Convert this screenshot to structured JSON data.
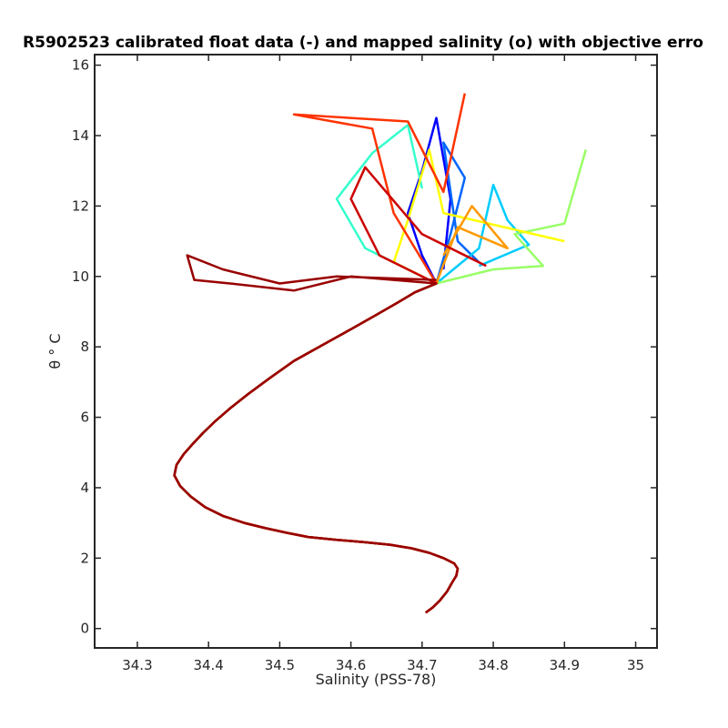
{
  "chart_data": {
    "type": "line",
    "title": "R5902523 calibrated float data (-) and mapped salinity (o) with objective erro",
    "xlabel": "Salinity (PSS-78)",
    "ylabel": "θ ° C",
    "xlim": [
      34.24,
      35.03
    ],
    "ylim": [
      -0.55,
      16.3
    ],
    "xticks": [
      34.3,
      34.4,
      34.5,
      34.6,
      34.7,
      34.8,
      34.9,
      35
    ],
    "xtick_labels": [
      "34.3",
      "34.4",
      "34.5",
      "34.6",
      "34.7",
      "34.8",
      "34.9",
      "35"
    ],
    "yticks": [
      0,
      2,
      4,
      6,
      8,
      10,
      12,
      14,
      16
    ],
    "ytick_labels": [
      "0",
      "2",
      "4",
      "6",
      "8",
      "10",
      "12",
      "14",
      "16"
    ],
    "grid": false,
    "colormap": "jet",
    "colors": [
      "#0000ff",
      "#0066ff",
      "#00ccff",
      "#33ffcc",
      "#99ff66",
      "#ffff00",
      "#ff9900",
      "#ff3300",
      "#cc0000",
      "#990000"
    ],
    "deep_profile": [
      [
        34.705,
        0.45
      ],
      [
        34.715,
        0.6
      ],
      [
        34.725,
        0.8
      ],
      [
        34.735,
        1.05
      ],
      [
        34.742,
        1.3
      ],
      [
        34.748,
        1.5
      ],
      [
        34.75,
        1.7
      ],
      [
        34.745,
        1.85
      ],
      [
        34.73,
        2.0
      ],
      [
        34.71,
        2.15
      ],
      [
        34.685,
        2.28
      ],
      [
        34.655,
        2.38
      ],
      [
        34.62,
        2.45
      ],
      [
        34.58,
        2.52
      ],
      [
        34.54,
        2.6
      ],
      [
        34.51,
        2.72
      ],
      [
        34.48,
        2.85
      ],
      [
        34.45,
        3.0
      ],
      [
        34.42,
        3.2
      ],
      [
        34.395,
        3.45
      ],
      [
        34.375,
        3.75
      ],
      [
        34.36,
        4.05
      ],
      [
        34.352,
        4.35
      ],
      [
        34.355,
        4.65
      ],
      [
        34.365,
        4.95
      ],
      [
        34.378,
        5.25
      ],
      [
        34.392,
        5.55
      ],
      [
        34.41,
        5.9
      ],
      [
        34.43,
        6.25
      ],
      [
        34.455,
        6.65
      ],
      [
        34.485,
        7.1
      ],
      [
        34.52,
        7.6
      ],
      [
        34.56,
        8.05
      ],
      [
        34.6,
        8.5
      ],
      [
        34.635,
        8.9
      ],
      [
        34.665,
        9.25
      ],
      [
        34.69,
        9.55
      ],
      [
        34.72,
        9.8
      ]
    ],
    "series": [
      {
        "color_index": 0,
        "upper": [
          [
            34.72,
            9.8
          ],
          [
            34.7,
            10.6
          ],
          [
            34.68,
            11.8
          ],
          [
            34.7,
            13.0
          ],
          [
            34.72,
            14.5
          ],
          [
            34.74,
            12.2
          ],
          [
            34.73,
            10.2
          ]
        ]
      },
      {
        "color_index": 1,
        "upper": [
          [
            34.73,
            9.9
          ],
          [
            34.74,
            11.2
          ],
          [
            34.76,
            12.8
          ],
          [
            34.73,
            13.8
          ],
          [
            34.75,
            11.0
          ],
          [
            34.78,
            10.4
          ]
        ]
      },
      {
        "color_index": 2,
        "upper": [
          [
            34.72,
            9.9
          ],
          [
            34.78,
            10.8
          ],
          [
            34.8,
            12.6
          ],
          [
            34.82,
            11.6
          ],
          [
            34.85,
            10.9
          ],
          [
            34.78,
            10.3
          ]
        ]
      },
      {
        "color_index": 3,
        "upper": [
          [
            34.7,
            9.9
          ],
          [
            34.62,
            10.8
          ],
          [
            34.58,
            12.2
          ],
          [
            34.63,
            13.5
          ],
          [
            34.68,
            14.3
          ],
          [
            34.7,
            12.5
          ]
        ]
      },
      {
        "color_index": 4,
        "upper": [
          [
            34.74,
            9.9
          ],
          [
            34.8,
            10.2
          ],
          [
            34.87,
            10.3
          ],
          [
            34.83,
            11.2
          ],
          [
            34.9,
            11.5
          ],
          [
            34.93,
            13.6
          ]
        ]
      },
      {
        "color_index": 5,
        "upper": [
          [
            34.71,
            9.9
          ],
          [
            34.66,
            10.4
          ],
          [
            34.68,
            11.6
          ],
          [
            34.71,
            13.6
          ],
          [
            34.73,
            11.8
          ],
          [
            34.9,
            11.0
          ]
        ]
      },
      {
        "color_index": 6,
        "upper": [
          [
            34.73,
            10.0
          ],
          [
            34.75,
            11.4
          ],
          [
            34.82,
            10.8
          ],
          [
            34.77,
            12.0
          ],
          [
            34.73,
            10.6
          ]
        ]
      },
      {
        "color_index": 7,
        "upper": [
          [
            34.72,
            9.9
          ],
          [
            34.66,
            11.8
          ],
          [
            34.63,
            14.2
          ],
          [
            34.52,
            14.6
          ],
          [
            34.68,
            14.4
          ],
          [
            34.73,
            12.4
          ],
          [
            34.76,
            15.2
          ]
        ]
      },
      {
        "color_index": 8,
        "upper": [
          [
            34.72,
            9.9
          ],
          [
            34.64,
            10.6
          ],
          [
            34.6,
            12.2
          ],
          [
            34.62,
            13.1
          ],
          [
            34.7,
            11.2
          ],
          [
            34.79,
            10.3
          ]
        ]
      },
      {
        "color_index": 9,
        "upper": [
          [
            34.72,
            9.8
          ],
          [
            34.6,
            10.0
          ],
          [
            34.52,
            9.6
          ],
          [
            34.43,
            9.8
          ],
          [
            34.38,
            9.9
          ],
          [
            34.37,
            10.6
          ],
          [
            34.42,
            10.2
          ],
          [
            34.5,
            9.8
          ],
          [
            34.58,
            10.0
          ],
          [
            34.72,
            9.9
          ]
        ]
      }
    ]
  }
}
